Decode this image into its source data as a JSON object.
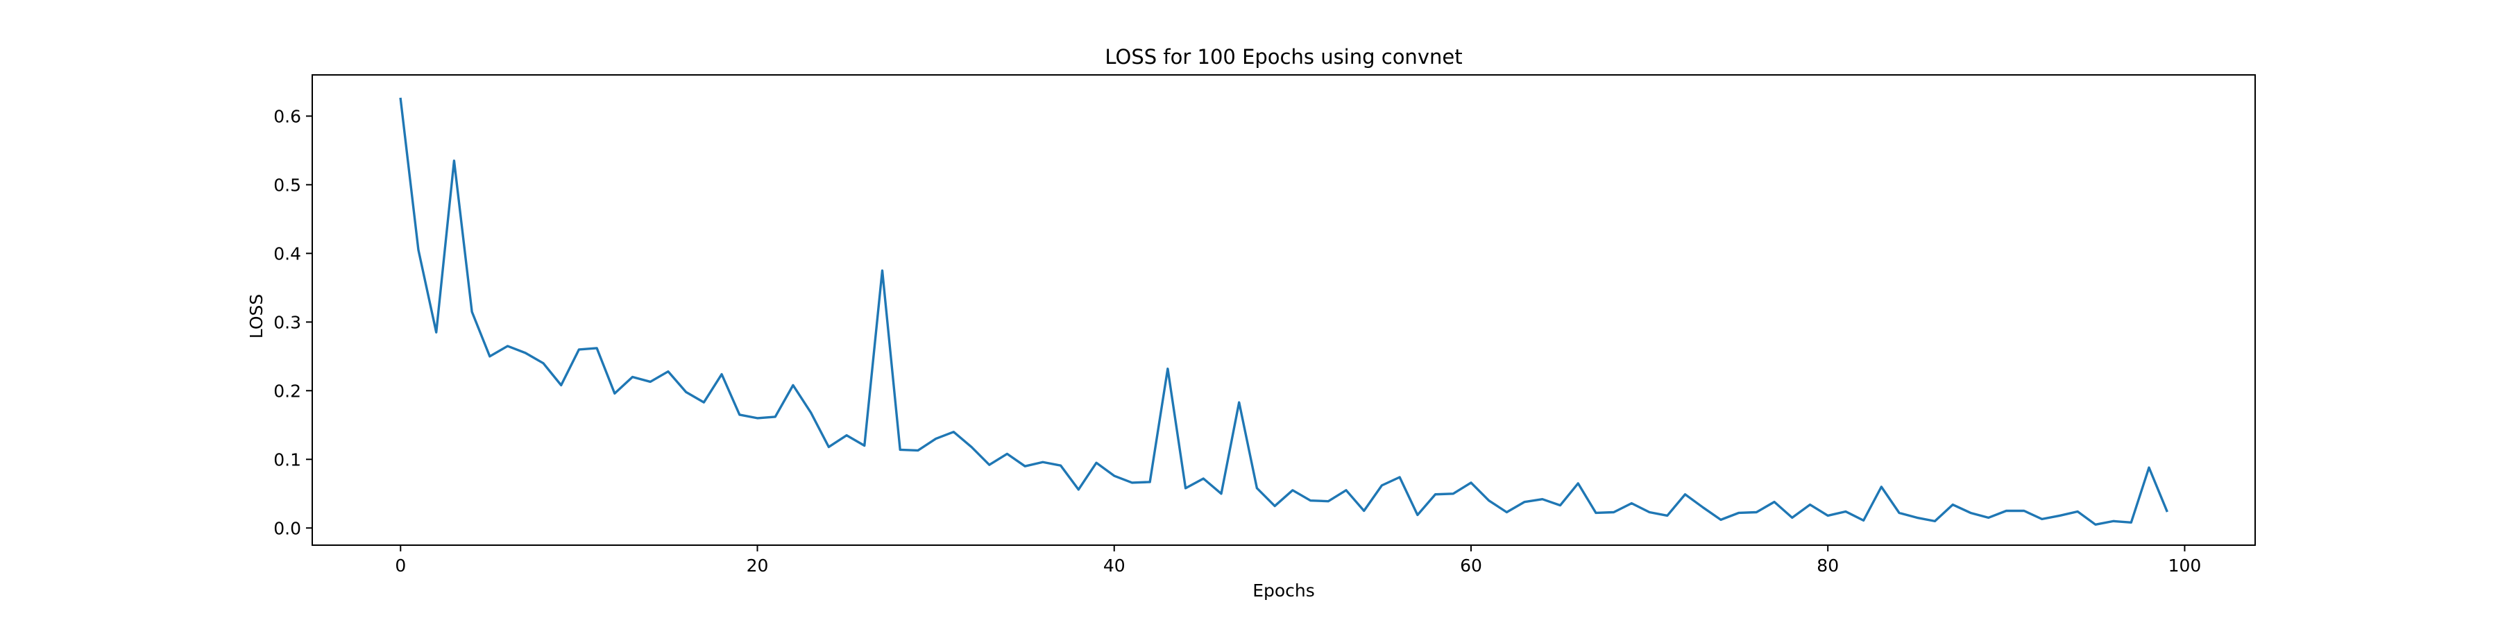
{
  "chart_data": {
    "type": "line",
    "title": "LOSS for 100 Epochs using convnet",
    "xlabel": "Epochs",
    "ylabel": "LOSS",
    "xlim": [
      -4.95,
      103.95
    ],
    "ylim": [
      -0.025,
      0.66
    ],
    "xticks": [
      0,
      20,
      40,
      60,
      80,
      100
    ],
    "yticks": [
      0.0,
      0.1,
      0.2,
      0.3,
      0.4,
      0.5,
      0.6
    ],
    "xtick_labels": [
      "0",
      "20",
      "40",
      "60",
      "80",
      "100"
    ],
    "ytick_labels": [
      "0.0",
      "0.1",
      "0.2",
      "0.3",
      "0.4",
      "0.5",
      "0.6"
    ],
    "grid": false,
    "legend": false,
    "series": [
      {
        "color": "#1f77b4",
        "x": [
          0,
          1,
          2,
          3,
          4,
          5,
          6,
          7,
          8,
          9,
          10,
          11,
          12,
          13,
          14,
          15,
          16,
          17,
          18,
          19,
          20,
          21,
          22,
          23,
          24,
          25,
          26,
          27,
          28,
          29,
          30,
          31,
          32,
          33,
          34,
          35,
          36,
          37,
          38,
          39,
          40,
          41,
          42,
          43,
          44,
          45,
          46,
          47,
          48,
          49,
          50,
          51,
          52,
          53,
          54,
          55,
          56,
          57,
          58,
          59,
          60,
          61,
          62,
          63,
          64,
          65,
          66,
          67,
          68,
          69,
          70,
          71,
          72,
          73,
          74,
          75,
          76,
          77,
          78,
          79,
          80,
          81,
          82,
          83,
          84,
          85,
          86,
          87,
          88,
          89,
          90,
          91,
          92,
          93,
          94,
          95,
          96,
          97,
          98,
          99
        ],
        "values": [
          0.625,
          0.405,
          0.285,
          0.535,
          0.315,
          0.25,
          0.265,
          0.255,
          0.24,
          0.208,
          0.26,
          0.262,
          0.196,
          0.22,
          0.213,
          0.228,
          0.198,
          0.183,
          0.224,
          0.165,
          0.16,
          0.162,
          0.208,
          0.168,
          0.118,
          0.135,
          0.12,
          0.375,
          0.114,
          0.113,
          0.13,
          0.14,
          0.118,
          0.092,
          0.108,
          0.09,
          0.096,
          0.091,
          0.056,
          0.095,
          0.076,
          0.066,
          0.067,
          0.232,
          0.058,
          0.072,
          0.05,
          0.183,
          0.058,
          0.032,
          0.055,
          0.04,
          0.039,
          0.055,
          0.025,
          0.062,
          0.074,
          0.019,
          0.049,
          0.05,
          0.066,
          0.04,
          0.023,
          0.038,
          0.042,
          0.033,
          0.065,
          0.022,
          0.023,
          0.036,
          0.023,
          0.018,
          0.049,
          0.03,
          0.012,
          0.022,
          0.023,
          0.038,
          0.015,
          0.034,
          0.018,
          0.024,
          0.011,
          0.06,
          0.022,
          0.015,
          0.01,
          0.034,
          0.022,
          0.015,
          0.025,
          0.025,
          0.013,
          0.018,
          0.024,
          0.005,
          0.01,
          0.008,
          0.088,
          0.025
        ]
      }
    ]
  }
}
